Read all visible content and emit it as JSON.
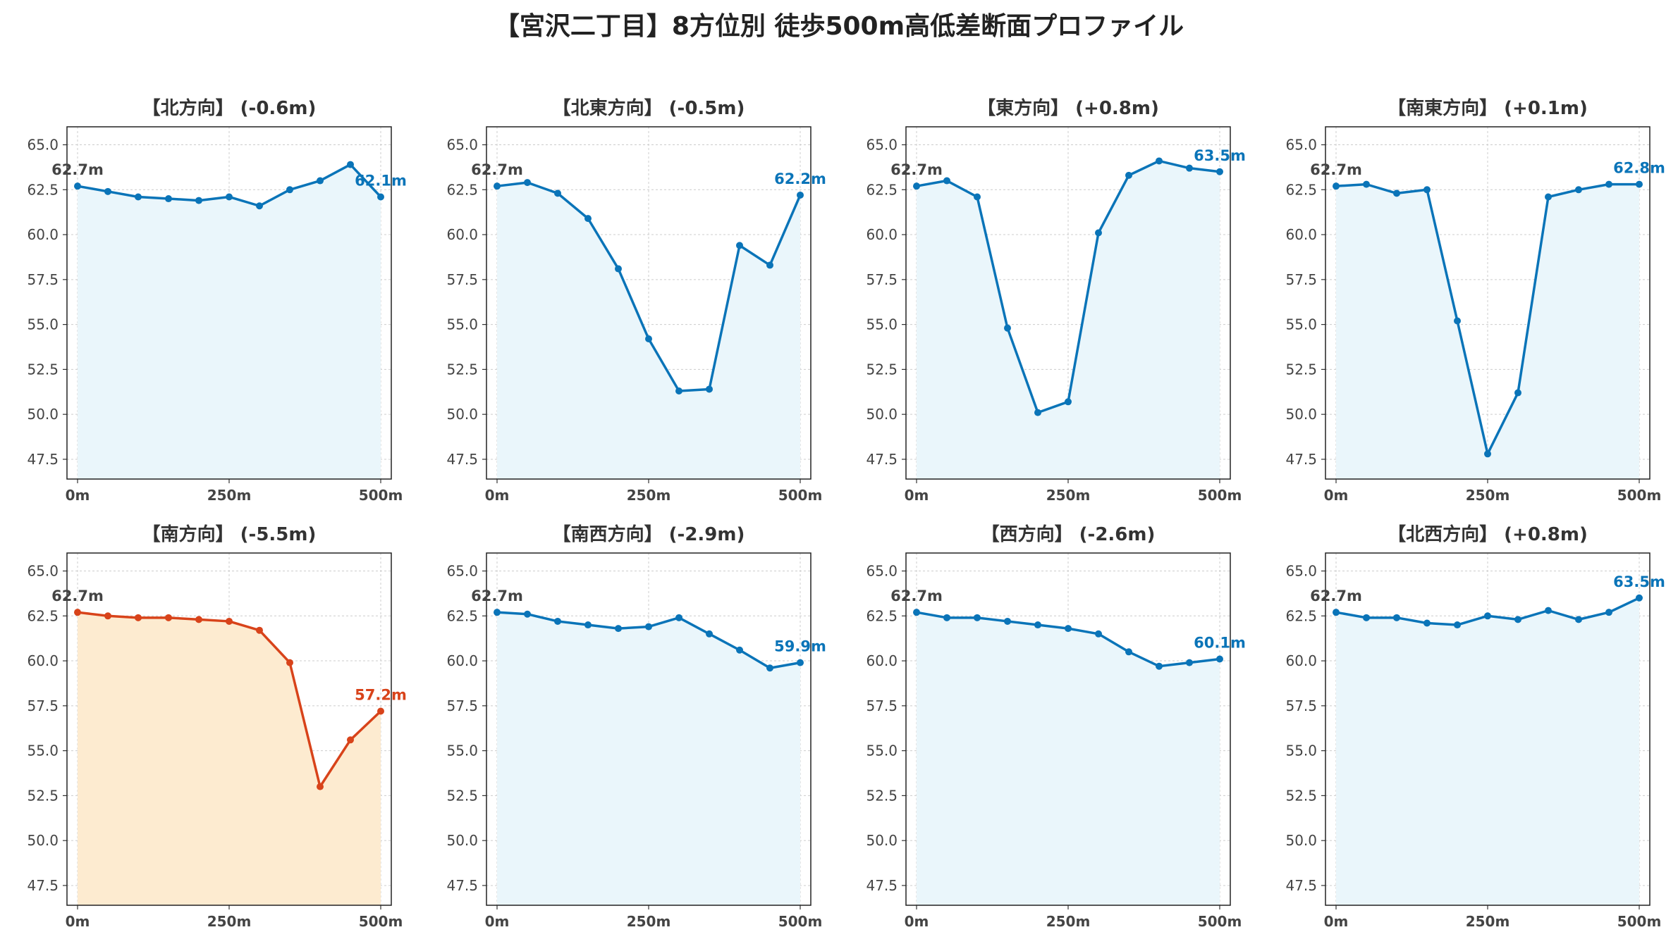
{
  "title": "【宮沢二丁目】8方位別 徒歩500m高低差断面プロファイル",
  "colors": {
    "normal_line": "#0a74b8",
    "normal_fill": "#eaf6fb",
    "alert_line": "#d8431a",
    "alert_fill": "#fdebd0",
    "start_label": "#444444",
    "grid": "#cccccc"
  },
  "chart_data": [
    {
      "type": "area",
      "title": "【北方向】 (-0.6m)",
      "alert": false,
      "x": [
        0,
        50,
        100,
        150,
        200,
        250,
        300,
        350,
        400,
        450,
        500
      ],
      "y": [
        62.7,
        62.4,
        62.1,
        62.0,
        61.9,
        62.1,
        61.6,
        62.5,
        63.0,
        63.9,
        62.1
      ],
      "start_label": "62.7m",
      "end_label": "62.1m",
      "xticks": [
        "0m",
        "250m",
        "500m"
      ],
      "yticks": [
        "47.5",
        "50.0",
        "52.5",
        "55.0",
        "57.5",
        "60.0",
        "62.5",
        "65.0"
      ],
      "ylim": [
        46.4,
        66.0
      ],
      "grid": true
    },
    {
      "type": "area",
      "title": "【北東方向】 (-0.5m)",
      "alert": false,
      "x": [
        0,
        50,
        100,
        150,
        200,
        250,
        300,
        350,
        400,
        450,
        500
      ],
      "y": [
        62.7,
        62.9,
        62.3,
        60.9,
        58.1,
        54.2,
        51.3,
        51.4,
        59.4,
        58.3,
        62.2
      ],
      "start_label": "62.7m",
      "end_label": "62.2m",
      "xticks": [
        "0m",
        "250m",
        "500m"
      ],
      "yticks": [
        "47.5",
        "50.0",
        "52.5",
        "55.0",
        "57.5",
        "60.0",
        "62.5",
        "65.0"
      ],
      "ylim": [
        46.4,
        66.0
      ],
      "grid": true
    },
    {
      "type": "area",
      "title": "【東方向】 (+0.8m)",
      "alert": false,
      "x": [
        0,
        50,
        100,
        150,
        200,
        250,
        300,
        350,
        400,
        450,
        500
      ],
      "y": [
        62.7,
        63.0,
        62.1,
        54.8,
        50.1,
        50.7,
        60.1,
        63.3,
        64.1,
        63.7,
        63.5
      ],
      "start_label": "62.7m",
      "end_label": "63.5m",
      "xticks": [
        "0m",
        "250m",
        "500m"
      ],
      "yticks": [
        "47.5",
        "50.0",
        "52.5",
        "55.0",
        "57.5",
        "60.0",
        "62.5",
        "65.0"
      ],
      "ylim": [
        46.4,
        66.0
      ],
      "grid": true
    },
    {
      "type": "area",
      "title": "【南東方向】 (+0.1m)",
      "alert": false,
      "x": [
        0,
        50,
        100,
        150,
        200,
        250,
        300,
        350,
        400,
        450,
        500
      ],
      "y": [
        62.7,
        62.8,
        62.3,
        62.5,
        55.2,
        47.8,
        51.2,
        62.1,
        62.5,
        62.8,
        62.8
      ],
      "start_label": "62.7m",
      "end_label": "62.8m",
      "xticks": [
        "0m",
        "250m",
        "500m"
      ],
      "yticks": [
        "47.5",
        "50.0",
        "52.5",
        "55.0",
        "57.5",
        "60.0",
        "62.5",
        "65.0"
      ],
      "ylim": [
        46.4,
        66.0
      ],
      "grid": true
    },
    {
      "type": "area",
      "title": "【南方向】 (-5.5m)",
      "alert": true,
      "x": [
        0,
        50,
        100,
        150,
        200,
        250,
        300,
        350,
        400,
        450,
        500
      ],
      "y": [
        62.7,
        62.5,
        62.4,
        62.4,
        62.3,
        62.2,
        61.7,
        59.9,
        53.0,
        55.6,
        57.2
      ],
      "start_label": "62.7m",
      "end_label": "57.2m",
      "xticks": [
        "0m",
        "250m",
        "500m"
      ],
      "yticks": [
        "47.5",
        "50.0",
        "52.5",
        "55.0",
        "57.5",
        "60.0",
        "62.5",
        "65.0"
      ],
      "ylim": [
        46.4,
        66.0
      ],
      "grid": true
    },
    {
      "type": "area",
      "title": "【南西方向】 (-2.9m)",
      "alert": false,
      "x": [
        0,
        50,
        100,
        150,
        200,
        250,
        300,
        350,
        400,
        450,
        500
      ],
      "y": [
        62.7,
        62.6,
        62.2,
        62.0,
        61.8,
        61.9,
        62.4,
        61.5,
        60.6,
        59.6,
        59.9
      ],
      "start_label": "62.7m",
      "end_label": "59.9m",
      "xticks": [
        "0m",
        "250m",
        "500m"
      ],
      "yticks": [
        "47.5",
        "50.0",
        "52.5",
        "55.0",
        "57.5",
        "60.0",
        "62.5",
        "65.0"
      ],
      "ylim": [
        46.4,
        66.0
      ],
      "grid": true
    },
    {
      "type": "area",
      "title": "【西方向】 (-2.6m)",
      "alert": false,
      "x": [
        0,
        50,
        100,
        150,
        200,
        250,
        300,
        350,
        400,
        450,
        500
      ],
      "y": [
        62.7,
        62.4,
        62.4,
        62.2,
        62.0,
        61.8,
        61.5,
        60.5,
        59.7,
        59.9,
        60.1
      ],
      "start_label": "62.7m",
      "end_label": "60.1m",
      "xticks": [
        "0m",
        "250m",
        "500m"
      ],
      "yticks": [
        "47.5",
        "50.0",
        "52.5",
        "55.0",
        "57.5",
        "60.0",
        "62.5",
        "65.0"
      ],
      "ylim": [
        46.4,
        66.0
      ],
      "grid": true
    },
    {
      "type": "area",
      "title": "【北西方向】 (+0.8m)",
      "alert": false,
      "x": [
        0,
        50,
        100,
        150,
        200,
        250,
        300,
        350,
        400,
        450,
        500
      ],
      "y": [
        62.7,
        62.4,
        62.4,
        62.1,
        62.0,
        62.5,
        62.3,
        62.8,
        62.3,
        62.7,
        63.5
      ],
      "start_label": "62.7m",
      "end_label": "63.5m",
      "xticks": [
        "0m",
        "250m",
        "500m"
      ],
      "yticks": [
        "47.5",
        "50.0",
        "52.5",
        "55.0",
        "57.5",
        "60.0",
        "62.5",
        "65.0"
      ],
      "ylim": [
        46.4,
        66.0
      ],
      "grid": true
    }
  ]
}
